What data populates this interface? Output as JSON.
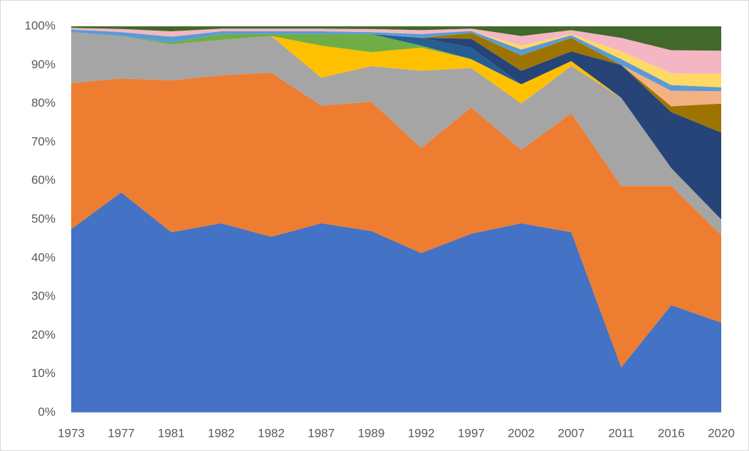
{
  "chart_data": {
    "type": "stacked-area-percent",
    "categories": [
      "1973",
      "1977",
      "1981",
      "1982",
      "1982",
      "1987",
      "1989",
      "1992",
      "1997",
      "2002",
      "2007",
      "2011",
      "2016",
      "2020"
    ],
    "ylim": [
      0,
      100
    ],
    "yticks": [
      {
        "value": 0,
        "label": "0%"
      },
      {
        "value": 10,
        "label": "10%"
      },
      {
        "value": 20,
        "label": "20%"
      },
      {
        "value": 30,
        "label": "30%"
      },
      {
        "value": 40,
        "label": "40%"
      },
      {
        "value": 50,
        "label": "50%"
      },
      {
        "value": 60,
        "label": "60%"
      },
      {
        "value": 70,
        "label": "70%"
      },
      {
        "value": 80,
        "label": "80%"
      },
      {
        "value": 90,
        "label": "90%"
      },
      {
        "value": 100,
        "label": "100%"
      }
    ],
    "grid": false,
    "series": [
      {
        "color": "#4472c4",
        "values": [
          47.5,
          57,
          46.7,
          49,
          45.5,
          49,
          47,
          41.3,
          46.3,
          49,
          46.7,
          11.7,
          27.8,
          23.3
        ]
      },
      {
        "color": "#ed7d31",
        "values": [
          37.8,
          29.5,
          39.3,
          38.3,
          42.5,
          30.5,
          33.5,
          27.2,
          32.7,
          19,
          30.8,
          47,
          30.9,
          22.7
        ]
      },
      {
        "color": "#a5a5a5",
        "values": [
          13.2,
          11,
          9.3,
          9.2,
          9.5,
          7.2,
          9.2,
          20,
          10.2,
          12,
          12.2,
          22.8,
          4.6,
          4
        ]
      },
      {
        "color": "#ffc000",
        "values": [
          0,
          0,
          0,
          0,
          0,
          8.3,
          3.6,
          6,
          2.3,
          5,
          1.3,
          0,
          0,
          0
        ]
      },
      {
        "color": "#70ad47",
        "values": [
          0,
          0,
          0.5,
          1.5,
          0.5,
          3,
          4.7,
          0.5,
          0,
          0,
          0,
          0,
          0,
          0
        ]
      },
      {
        "color": "#255e91",
        "values": [
          0,
          0,
          0,
          0,
          0,
          0,
          0,
          2,
          3,
          0,
          0,
          0,
          0,
          0
        ]
      },
      {
        "color": "#264478",
        "values": [
          0,
          0,
          0,
          0,
          0,
          0,
          0,
          0,
          2.3,
          3.5,
          2.5,
          8.5,
          14.5,
          22.5
        ]
      },
      {
        "color": "#9e7400",
        "values": [
          0,
          0,
          0,
          0,
          0,
          0,
          0,
          0,
          1.5,
          4,
          3.5,
          0,
          1.5,
          7.5
        ]
      },
      {
        "color": "#f4b183",
        "values": [
          0,
          0,
          0,
          0,
          0,
          0,
          0,
          0,
          0,
          0,
          0,
          0,
          4,
          3.2
        ]
      },
      {
        "color": "#5b9bd5",
        "values": [
          0.7,
          1,
          1.5,
          0.7,
          0.7,
          0.7,
          0.5,
          1,
          0.5,
          1.5,
          0.7,
          1.5,
          1.5,
          1
        ]
      },
      {
        "color": "#ffd966",
        "values": [
          0,
          0,
          0,
          0,
          0,
          0,
          0,
          0,
          0,
          1,
          0.3,
          2,
          3,
          3.5
        ]
      },
      {
        "color": "#f4b6c2",
        "values": [
          0.4,
          0.8,
          1.4,
          0.7,
          0.7,
          0.7,
          0.8,
          1,
          0.6,
          2.5,
          1,
          3.5,
          6,
          6
        ]
      },
      {
        "color": "#43682b",
        "values": [
          0.4,
          0.7,
          1.3,
          0.6,
          0.6,
          0.6,
          0.7,
          1,
          0.6,
          2.5,
          1,
          3,
          6.2,
          6.3
        ]
      }
    ]
  }
}
